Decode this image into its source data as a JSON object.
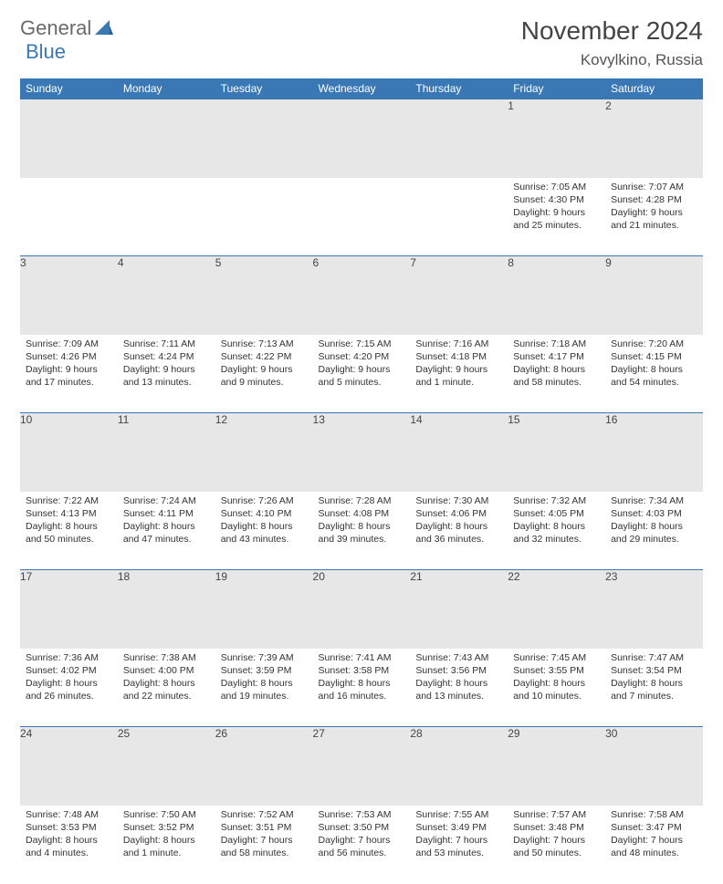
{
  "brand": {
    "part1": "General",
    "part2": "Blue"
  },
  "title": "November 2024",
  "location": "Kovylkino, Russia",
  "colors": {
    "header_bg": "#3a78b5",
    "header_fg": "#ffffff",
    "daynum_bg": "#e7e7e7",
    "border": "#3a78b5",
    "text": "#333333",
    "background": "#ffffff"
  },
  "fontsize": {
    "title": 28,
    "subtitle": 17,
    "dayhead": 12,
    "cell": 10.5
  },
  "days": [
    "Sunday",
    "Monday",
    "Tuesday",
    "Wednesday",
    "Thursday",
    "Friday",
    "Saturday"
  ],
  "weeks": [
    [
      null,
      null,
      null,
      null,
      null,
      {
        "n": "1",
        "sr": "Sunrise: 7:05 AM",
        "ss": "Sunset: 4:30 PM",
        "d1": "Daylight: 9 hours",
        "d2": "and 25 minutes."
      },
      {
        "n": "2",
        "sr": "Sunrise: 7:07 AM",
        "ss": "Sunset: 4:28 PM",
        "d1": "Daylight: 9 hours",
        "d2": "and 21 minutes."
      }
    ],
    [
      {
        "n": "3",
        "sr": "Sunrise: 7:09 AM",
        "ss": "Sunset: 4:26 PM",
        "d1": "Daylight: 9 hours",
        "d2": "and 17 minutes."
      },
      {
        "n": "4",
        "sr": "Sunrise: 7:11 AM",
        "ss": "Sunset: 4:24 PM",
        "d1": "Daylight: 9 hours",
        "d2": "and 13 minutes."
      },
      {
        "n": "5",
        "sr": "Sunrise: 7:13 AM",
        "ss": "Sunset: 4:22 PM",
        "d1": "Daylight: 9 hours",
        "d2": "and 9 minutes."
      },
      {
        "n": "6",
        "sr": "Sunrise: 7:15 AM",
        "ss": "Sunset: 4:20 PM",
        "d1": "Daylight: 9 hours",
        "d2": "and 5 minutes."
      },
      {
        "n": "7",
        "sr": "Sunrise: 7:16 AM",
        "ss": "Sunset: 4:18 PM",
        "d1": "Daylight: 9 hours",
        "d2": "and 1 minute."
      },
      {
        "n": "8",
        "sr": "Sunrise: 7:18 AM",
        "ss": "Sunset: 4:17 PM",
        "d1": "Daylight: 8 hours",
        "d2": "and 58 minutes."
      },
      {
        "n": "9",
        "sr": "Sunrise: 7:20 AM",
        "ss": "Sunset: 4:15 PM",
        "d1": "Daylight: 8 hours",
        "d2": "and 54 minutes."
      }
    ],
    [
      {
        "n": "10",
        "sr": "Sunrise: 7:22 AM",
        "ss": "Sunset: 4:13 PM",
        "d1": "Daylight: 8 hours",
        "d2": "and 50 minutes."
      },
      {
        "n": "11",
        "sr": "Sunrise: 7:24 AM",
        "ss": "Sunset: 4:11 PM",
        "d1": "Daylight: 8 hours",
        "d2": "and 47 minutes."
      },
      {
        "n": "12",
        "sr": "Sunrise: 7:26 AM",
        "ss": "Sunset: 4:10 PM",
        "d1": "Daylight: 8 hours",
        "d2": "and 43 minutes."
      },
      {
        "n": "13",
        "sr": "Sunrise: 7:28 AM",
        "ss": "Sunset: 4:08 PM",
        "d1": "Daylight: 8 hours",
        "d2": "and 39 minutes."
      },
      {
        "n": "14",
        "sr": "Sunrise: 7:30 AM",
        "ss": "Sunset: 4:06 PM",
        "d1": "Daylight: 8 hours",
        "d2": "and 36 minutes."
      },
      {
        "n": "15",
        "sr": "Sunrise: 7:32 AM",
        "ss": "Sunset: 4:05 PM",
        "d1": "Daylight: 8 hours",
        "d2": "and 32 minutes."
      },
      {
        "n": "16",
        "sr": "Sunrise: 7:34 AM",
        "ss": "Sunset: 4:03 PM",
        "d1": "Daylight: 8 hours",
        "d2": "and 29 minutes."
      }
    ],
    [
      {
        "n": "17",
        "sr": "Sunrise: 7:36 AM",
        "ss": "Sunset: 4:02 PM",
        "d1": "Daylight: 8 hours",
        "d2": "and 26 minutes."
      },
      {
        "n": "18",
        "sr": "Sunrise: 7:38 AM",
        "ss": "Sunset: 4:00 PM",
        "d1": "Daylight: 8 hours",
        "d2": "and 22 minutes."
      },
      {
        "n": "19",
        "sr": "Sunrise: 7:39 AM",
        "ss": "Sunset: 3:59 PM",
        "d1": "Daylight: 8 hours",
        "d2": "and 19 minutes."
      },
      {
        "n": "20",
        "sr": "Sunrise: 7:41 AM",
        "ss": "Sunset: 3:58 PM",
        "d1": "Daylight: 8 hours",
        "d2": "and 16 minutes."
      },
      {
        "n": "21",
        "sr": "Sunrise: 7:43 AM",
        "ss": "Sunset: 3:56 PM",
        "d1": "Daylight: 8 hours",
        "d2": "and 13 minutes."
      },
      {
        "n": "22",
        "sr": "Sunrise: 7:45 AM",
        "ss": "Sunset: 3:55 PM",
        "d1": "Daylight: 8 hours",
        "d2": "and 10 minutes."
      },
      {
        "n": "23",
        "sr": "Sunrise: 7:47 AM",
        "ss": "Sunset: 3:54 PM",
        "d1": "Daylight: 8 hours",
        "d2": "and 7 minutes."
      }
    ],
    [
      {
        "n": "24",
        "sr": "Sunrise: 7:48 AM",
        "ss": "Sunset: 3:53 PM",
        "d1": "Daylight: 8 hours",
        "d2": "and 4 minutes."
      },
      {
        "n": "25",
        "sr": "Sunrise: 7:50 AM",
        "ss": "Sunset: 3:52 PM",
        "d1": "Daylight: 8 hours",
        "d2": "and 1 minute."
      },
      {
        "n": "26",
        "sr": "Sunrise: 7:52 AM",
        "ss": "Sunset: 3:51 PM",
        "d1": "Daylight: 7 hours",
        "d2": "and 58 minutes."
      },
      {
        "n": "27",
        "sr": "Sunrise: 7:53 AM",
        "ss": "Sunset: 3:50 PM",
        "d1": "Daylight: 7 hours",
        "d2": "and 56 minutes."
      },
      {
        "n": "28",
        "sr": "Sunrise: 7:55 AM",
        "ss": "Sunset: 3:49 PM",
        "d1": "Daylight: 7 hours",
        "d2": "and 53 minutes."
      },
      {
        "n": "29",
        "sr": "Sunrise: 7:57 AM",
        "ss": "Sunset: 3:48 PM",
        "d1": "Daylight: 7 hours",
        "d2": "and 50 minutes."
      },
      {
        "n": "30",
        "sr": "Sunrise: 7:58 AM",
        "ss": "Sunset: 3:47 PM",
        "d1": "Daylight: 7 hours",
        "d2": "and 48 minutes."
      }
    ]
  ]
}
